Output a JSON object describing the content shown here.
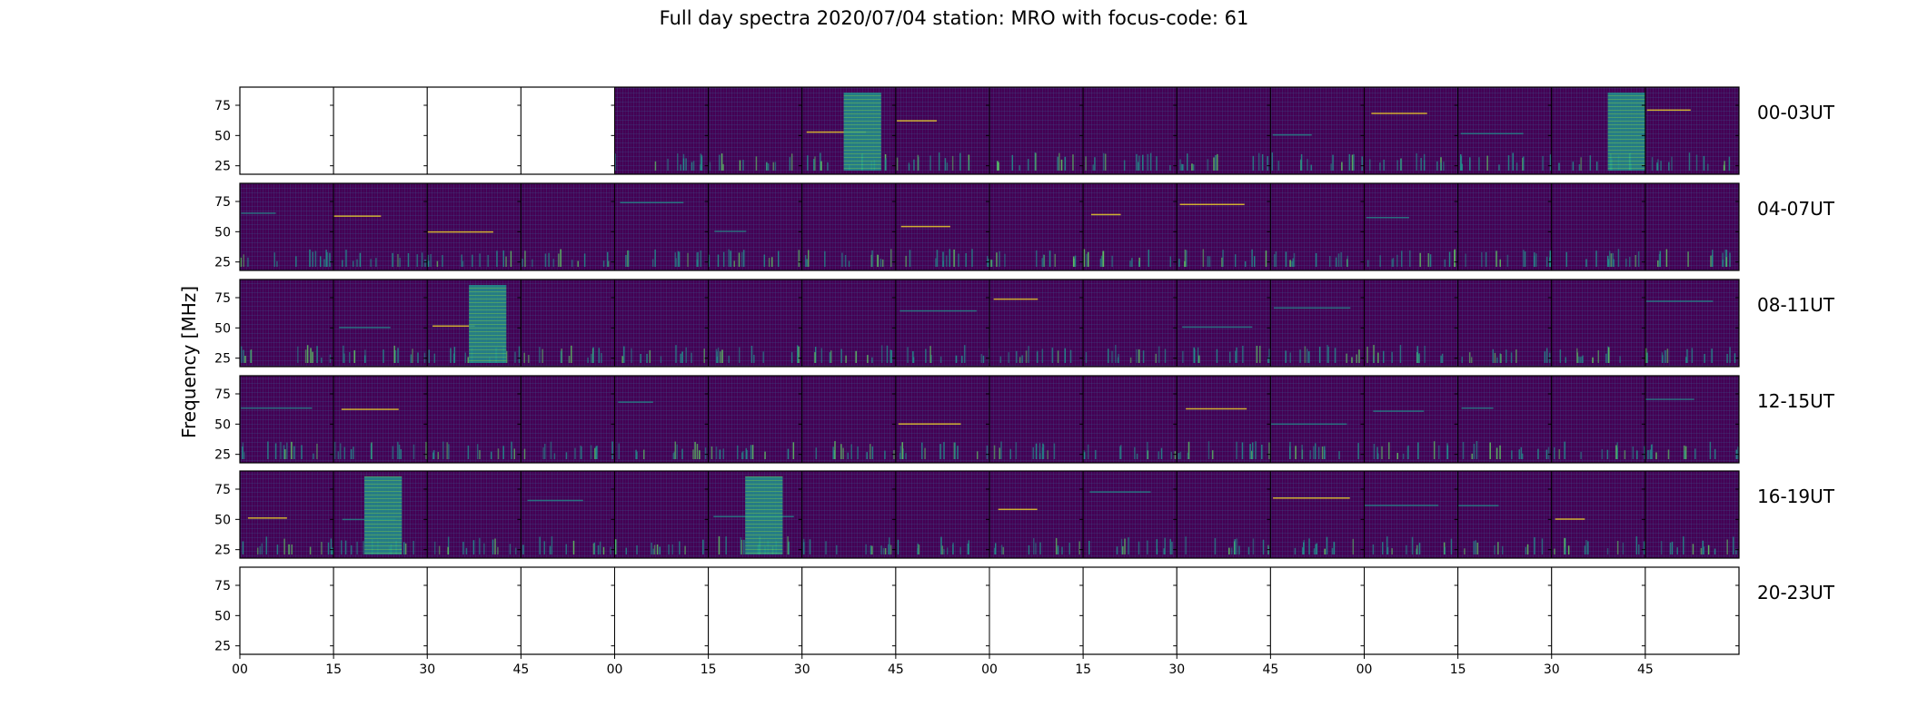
{
  "chart_data": {
    "type": "heatmap",
    "title": "Full day spectra 2020/07/04 station: MRO with focus-code: 61",
    "ylabel": "Frequency [MHz]",
    "xlabel": "",
    "y_ticks": [
      25,
      50,
      75
    ],
    "ylim": [
      18,
      90
    ],
    "x_ticks": [
      "00",
      "15",
      "30",
      "45",
      "00",
      "15",
      "30",
      "45",
      "00",
      "15",
      "30",
      "45",
      "00",
      "15",
      "30",
      "45"
    ],
    "colormap": "viridis",
    "rows": [
      {
        "label": "00-03UT",
        "panels_with_data": [
          false,
          false,
          false,
          false,
          true,
          true,
          true,
          true,
          true,
          true,
          true,
          true,
          true,
          true,
          true,
          true
        ]
      },
      {
        "label": "04-07UT",
        "panels_with_data": [
          true,
          true,
          true,
          true,
          true,
          true,
          true,
          true,
          true,
          true,
          true,
          true,
          true,
          true,
          true,
          true
        ]
      },
      {
        "label": "08-11UT",
        "panels_with_data": [
          true,
          true,
          true,
          true,
          true,
          true,
          true,
          true,
          true,
          true,
          true,
          true,
          true,
          true,
          true,
          true
        ]
      },
      {
        "label": "12-15UT",
        "panels_with_data": [
          true,
          true,
          true,
          true,
          true,
          true,
          true,
          true,
          true,
          true,
          true,
          true,
          true,
          true,
          true,
          true
        ]
      },
      {
        "label": "16-19UT",
        "panels_with_data": [
          true,
          true,
          true,
          true,
          true,
          true,
          true,
          true,
          true,
          true,
          true,
          true,
          true,
          true,
          true,
          true
        ]
      },
      {
        "label": "20-23UT",
        "panels_with_data": [
          false,
          false,
          false,
          false,
          false,
          false,
          false,
          false,
          false,
          false,
          false,
          false,
          false,
          false,
          false,
          false
        ]
      }
    ],
    "grid": false,
    "legend": "none"
  },
  "colors": {
    "background_dark": "#440154",
    "mid": "#3b528b",
    "teal": "#21918c",
    "green": "#5ec962",
    "yellow": "#fde725"
  }
}
